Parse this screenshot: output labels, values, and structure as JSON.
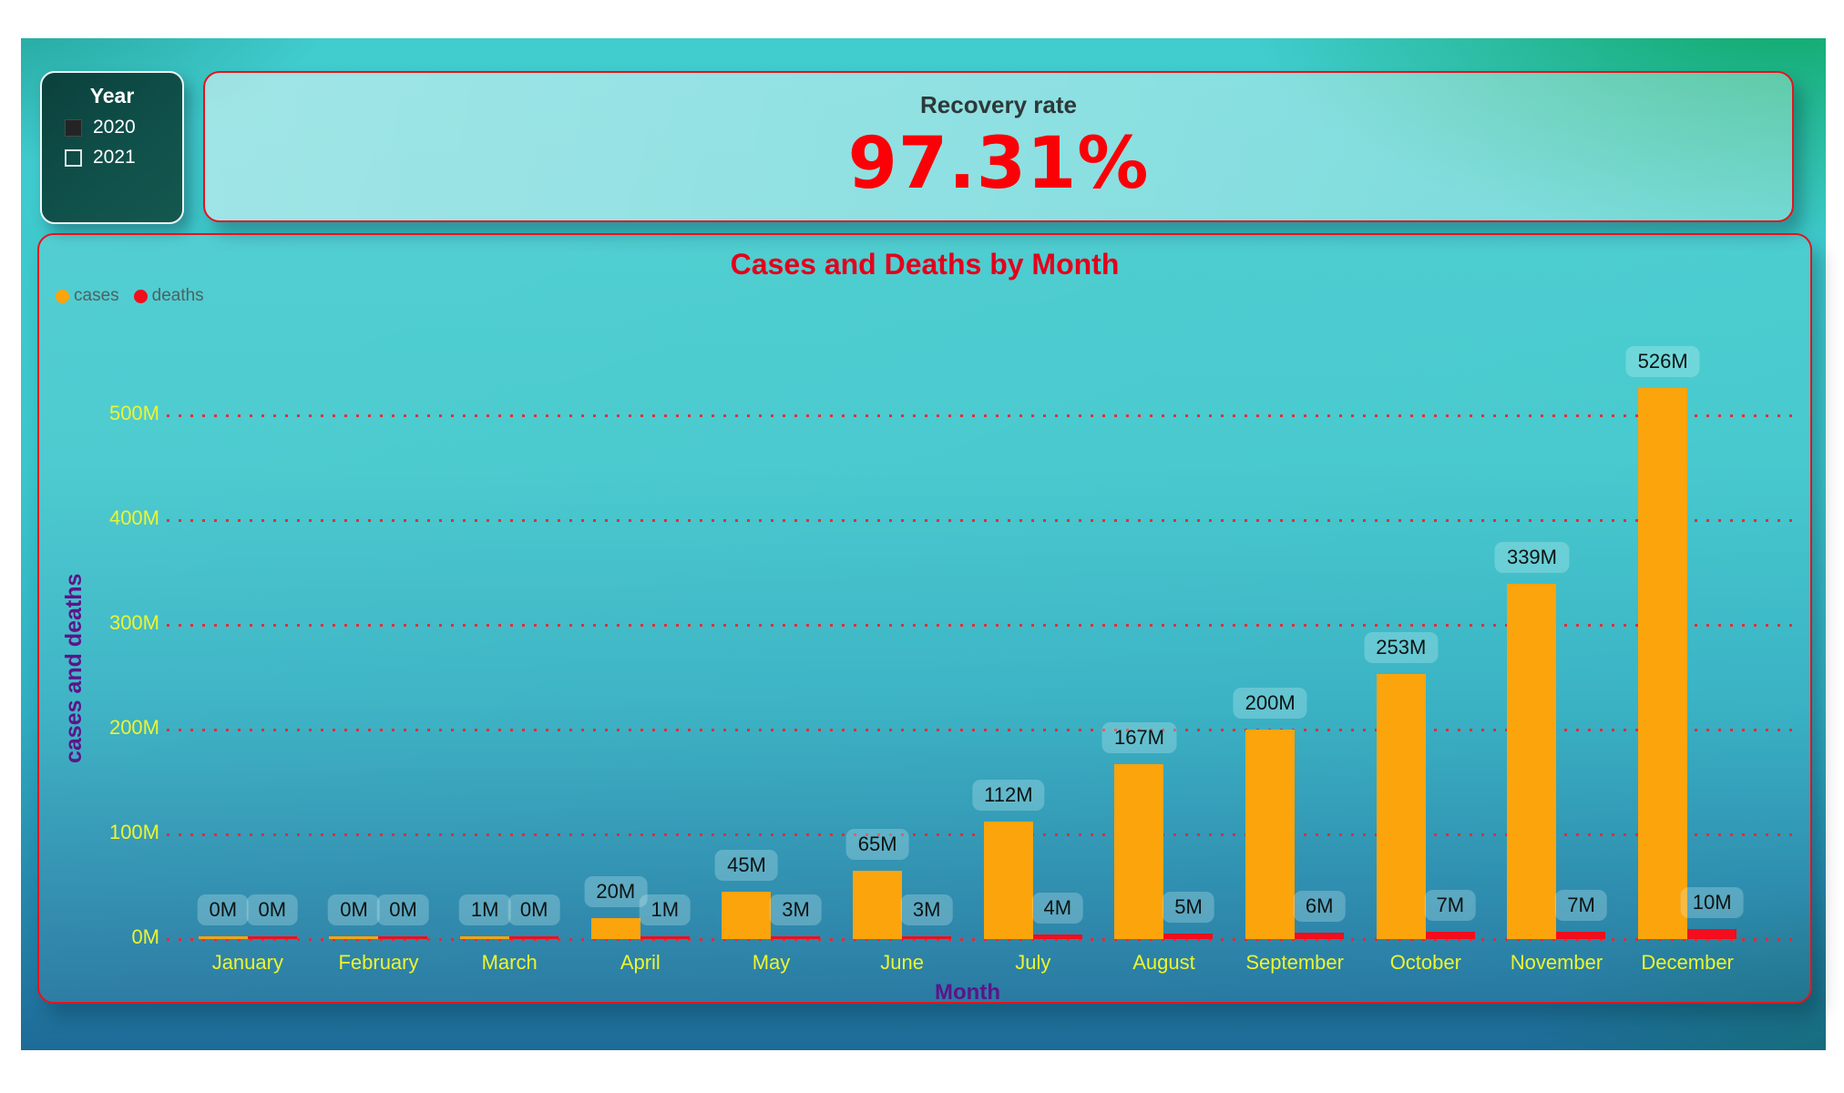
{
  "slicer": {
    "title": "Year",
    "items": [
      {
        "label": "2020",
        "checked": true
      },
      {
        "label": "2021",
        "checked": false
      }
    ]
  },
  "kpi": {
    "title": "Recovery rate",
    "value": "97.31%"
  },
  "chart_data": {
    "type": "bar",
    "title": "Cases and Deaths by Month",
    "categories": [
      "January",
      "February",
      "March",
      "April",
      "May",
      "June",
      "July",
      "August",
      "September",
      "October",
      "November",
      "December"
    ],
    "series": [
      {
        "name": "cases",
        "color": "#fca40c",
        "values": [
          0,
          0,
          1,
          20,
          45,
          65,
          112,
          167,
          200,
          253,
          339,
          526
        ],
        "labels": [
          "0M",
          "0M",
          "1M",
          "20M",
          "45M",
          "65M",
          "112M",
          "167M",
          "200M",
          "253M",
          "339M",
          "526M"
        ]
      },
      {
        "name": "deaths",
        "color": "#f40d1c",
        "values": [
          0,
          0,
          0,
          1,
          3,
          3,
          4,
          5,
          6,
          7,
          7,
          10
        ],
        "labels": [
          "0M",
          "0M",
          "0M",
          "1M",
          "3M",
          "3M",
          "4M",
          "5M",
          "6M",
          "7M",
          "7M",
          "10M"
        ]
      }
    ],
    "xlabel": "Month",
    "ylabel": "cases and deaths",
    "ylim": [
      0,
      500
    ],
    "yticks": [
      {
        "label": "0M",
        "value": 0
      },
      {
        "label": "100M",
        "value": 100
      },
      {
        "label": "200M",
        "value": 200
      },
      {
        "label": "300M",
        "value": 300
      },
      {
        "label": "400M",
        "value": 400
      },
      {
        "label": "500M",
        "value": 500
      }
    ],
    "grid": true,
    "legend_position": "top-left"
  },
  "colors": {
    "card_border": "#e8111c",
    "chart_title_red": "#e3001b",
    "kpi_value_red": "#fb0006",
    "axis_tick_yellow": "#ecf431",
    "axis_title_purple": "#5c1488",
    "gridline_red": "#e42a34",
    "legend_text_gray": "#4d6263",
    "slicer_background": "#0e4a45"
  }
}
